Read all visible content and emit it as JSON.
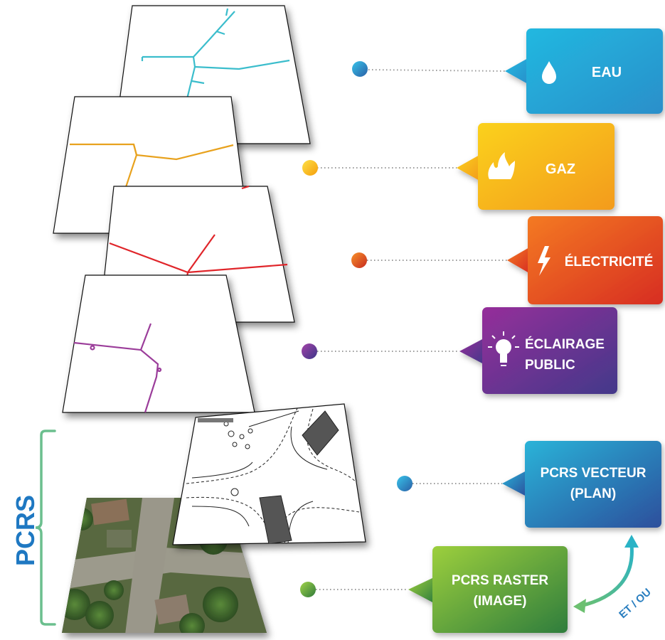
{
  "layers": [
    {
      "id": "eau",
      "label": "EAU",
      "icon": "water-drop-icon",
      "color": "#1fa9d6",
      "color2": "#2e9bd0",
      "line": "#3bbdcc"
    },
    {
      "id": "gaz",
      "label": "GAZ",
      "icon": "flame-icon",
      "color": "#f7c21a",
      "color2": "#f4a11d",
      "line": "#e8a21e"
    },
    {
      "id": "electricite",
      "label": "ÉLECTRICITÉ",
      "icon": "lightning-icon",
      "color": "#f26722",
      "color2": "#d9341f",
      "line": "#e0252a"
    },
    {
      "id": "eclairage",
      "label_line1": "ÉCLAIRAGE",
      "label_line2": "PUBLIC",
      "icon": "light-bulb-icon",
      "color": "#8a2f98",
      "color2": "#4b3a8c",
      "line": "#9b3d9a"
    }
  ],
  "pcrs": {
    "bracket_label": "PCRS",
    "bracket_color": "#6bbf8e",
    "label_color": "#1e78c2",
    "vecteur": {
      "line1": "PCRS VECTEUR",
      "line2": "(PLAN)",
      "color": "#2aa3d0",
      "color2": "#2c4f9c"
    },
    "raster": {
      "line1": "PCRS RASTER",
      "line2": "(IMAGE)",
      "color": "#8dc63f",
      "color2": "#3b8a3e"
    },
    "et_ou": "ET / OU",
    "arrow_color": "#5cb8a0"
  }
}
